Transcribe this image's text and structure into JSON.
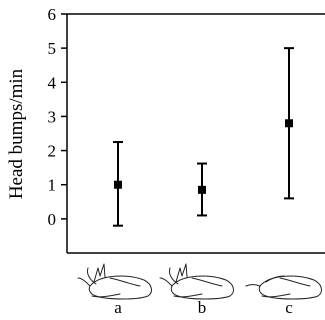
{
  "chart_data": {
    "type": "scatter",
    "error_bars": true,
    "title": "",
    "xlabel": "",
    "ylabel": "Head bumps/min",
    "ylim": [
      -1,
      6
    ],
    "yticks": [
      0,
      1,
      2,
      3,
      4,
      5,
      6
    ],
    "grid": false,
    "categories": [
      "a",
      "b",
      "c"
    ],
    "series": [
      {
        "points": [
          {
            "x": "a",
            "y": 1.0,
            "low": -0.2,
            "high": 2.25
          },
          {
            "x": "b",
            "y": 0.85,
            "low": 0.1,
            "high": 1.62
          },
          {
            "x": "c",
            "y": 2.8,
            "low": 0.6,
            "high": 5.0
          }
        ],
        "color": "#000000"
      }
    ]
  }
}
